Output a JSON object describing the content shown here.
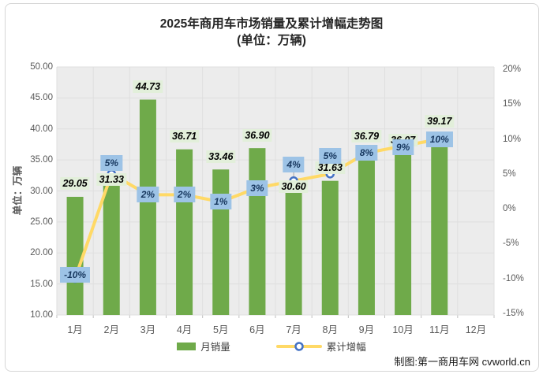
{
  "title": {
    "line1": "2025年商用车市场销量及累计增幅走势图",
    "line2": "(单位：万辆)"
  },
  "credit": "制图:第一商用车网 cvworld.cn",
  "chart_data": {
    "type": "bar+line combo",
    "categories": [
      "1月",
      "2月",
      "3月",
      "4月",
      "5月",
      "6月",
      "7月",
      "8月",
      "9月",
      "10月",
      "11月",
      "12月"
    ],
    "series": [
      {
        "name": "月销量",
        "type": "bar",
        "axis": "left",
        "values": [
          29.05,
          31.33,
          44.73,
          36.71,
          33.46,
          36.9,
          30.6,
          31.63,
          36.79,
          36.07,
          39.17,
          null
        ],
        "labels": [
          "29.05",
          "31.33",
          "44.73",
          "36.71",
          "33.46",
          "36.90",
          "30.60",
          "31.63",
          "36.79",
          "36.07",
          "39.17"
        ]
      },
      {
        "name": "累计增幅",
        "type": "line",
        "axis": "right",
        "values": [
          -10,
          5,
          2,
          2,
          1,
          3,
          4,
          5,
          8,
          9,
          10,
          null
        ],
        "labels": [
          "-10%",
          "5%",
          "2%",
          "2%",
          "1%",
          "3%",
          "4%",
          "5%",
          "8%",
          "9%",
          "10%"
        ]
      }
    ],
    "left_axis": {
      "title": "单位：万辆",
      "min": 10,
      "max": 50,
      "step": 5,
      "ticks": [
        "50.00",
        "45.00",
        "40.00",
        "35.00",
        "30.00",
        "25.00",
        "20.00",
        "15.00",
        "10.00"
      ]
    },
    "right_axis": {
      "min": -15,
      "max": 20,
      "step": 5,
      "ticks": [
        "20%",
        "15%",
        "10%",
        "5%",
        "0%",
        "-5%",
        "-10%",
        "-15%"
      ]
    },
    "legend_position": "bottom",
    "grid": true
  },
  "colors": {
    "bar": "#6FAA4A",
    "line": "#FFD966",
    "marker_stroke": "#4472C4",
    "marker_fill": "#FFFFFF",
    "plot_bg": "#ECECEC",
    "gridline": "#DFDFDF",
    "tick_mark": "#BFBFBF",
    "leader": "#A6A6A6",
    "value_label_bg": "#E2EFDA",
    "pct_label_bg": "#9DC3E6",
    "pct_label_text": "#17375E",
    "axis_text": "#595959",
    "border": "#D6D6D6"
  }
}
